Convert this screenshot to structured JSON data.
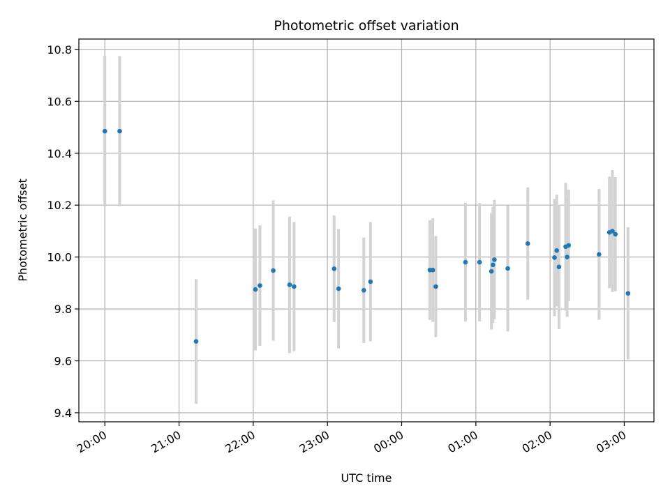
{
  "chart_data": {
    "type": "scatter",
    "title": "Photometric offset variation",
    "xlabel": "UTC time",
    "ylabel": "Photometric offset",
    "x_unit": "hours",
    "xlim": [
      -0.35,
      7.4
    ],
    "ylim": [
      9.365,
      10.84
    ],
    "grid": true,
    "x_ticks": [
      {
        "value": 0,
        "label": "20:00"
      },
      {
        "value": 1,
        "label": "21:00"
      },
      {
        "value": 2,
        "label": "22:00"
      },
      {
        "value": 3,
        "label": "23:00"
      },
      {
        "value": 4,
        "label": "00:00"
      },
      {
        "value": 5,
        "label": "01:00"
      },
      {
        "value": 6,
        "label": "02:00"
      },
      {
        "value": 7,
        "label": "03:00"
      }
    ],
    "y_ticks": [
      {
        "value": 9.4,
        "label": "9.4"
      },
      {
        "value": 9.6,
        "label": "9.6"
      },
      {
        "value": 9.8,
        "label": "9.8"
      },
      {
        "value": 10.0,
        "label": "10.0"
      },
      {
        "value": 10.2,
        "label": "10.2"
      },
      {
        "value": 10.4,
        "label": "10.4"
      },
      {
        "value": 10.6,
        "label": "10.6"
      },
      {
        "value": 10.8,
        "label": "10.8"
      }
    ],
    "colors": {
      "point": "#1f77b4",
      "errorbar": "#d3d3d3",
      "grid": "#b0b0b0"
    },
    "points": [
      {
        "x": 0.0,
        "y": 10.485,
        "err": 0.29
      },
      {
        "x": 0.2,
        "y": 10.485,
        "err": 0.29
      },
      {
        "x": 1.23,
        "y": 9.675,
        "err": 0.24
      },
      {
        "x": 2.03,
        "y": 9.875,
        "err": 0.235
      },
      {
        "x": 2.09,
        "y": 9.89,
        "err": 0.232
      },
      {
        "x": 2.27,
        "y": 9.948,
        "err": 0.27
      },
      {
        "x": 2.49,
        "y": 9.893,
        "err": 0.263
      },
      {
        "x": 2.55,
        "y": 9.886,
        "err": 0.249
      },
      {
        "x": 3.09,
        "y": 9.955,
        "err": 0.205
      },
      {
        "x": 3.15,
        "y": 9.878,
        "err": 0.23
      },
      {
        "x": 3.49,
        "y": 9.872,
        "err": 0.203
      },
      {
        "x": 3.58,
        "y": 9.905,
        "err": 0.23
      },
      {
        "x": 4.38,
        "y": 9.95,
        "err": 0.192
      },
      {
        "x": 4.42,
        "y": 9.95,
        "err": 0.2
      },
      {
        "x": 4.46,
        "y": 9.886,
        "err": 0.195
      },
      {
        "x": 4.86,
        "y": 9.98,
        "err": 0.229
      },
      {
        "x": 5.05,
        "y": 9.98,
        "err": 0.228
      },
      {
        "x": 5.21,
        "y": 9.945,
        "err": 0.224
      },
      {
        "x": 5.23,
        "y": 9.97,
        "err": 0.224
      },
      {
        "x": 5.25,
        "y": 9.99,
        "err": 0.23
      },
      {
        "x": 5.43,
        "y": 9.956,
        "err": 0.243
      },
      {
        "x": 5.7,
        "y": 10.052,
        "err": 0.216
      },
      {
        "x": 6.06,
        "y": 9.998,
        "err": 0.226
      },
      {
        "x": 6.09,
        "y": 10.025,
        "err": 0.215
      },
      {
        "x": 6.12,
        "y": 9.962,
        "err": 0.24
      },
      {
        "x": 6.21,
        "y": 10.04,
        "err": 0.246
      },
      {
        "x": 6.23,
        "y": 10.0,
        "err": 0.23
      },
      {
        "x": 6.25,
        "y": 10.045,
        "err": 0.215
      },
      {
        "x": 6.66,
        "y": 10.01,
        "err": 0.252
      },
      {
        "x": 6.8,
        "y": 10.095,
        "err": 0.215
      },
      {
        "x": 6.84,
        "y": 10.1,
        "err": 0.235
      },
      {
        "x": 6.88,
        "y": 10.088,
        "err": 0.22
      },
      {
        "x": 7.05,
        "y": 9.86,
        "err": 0.255
      }
    ]
  }
}
